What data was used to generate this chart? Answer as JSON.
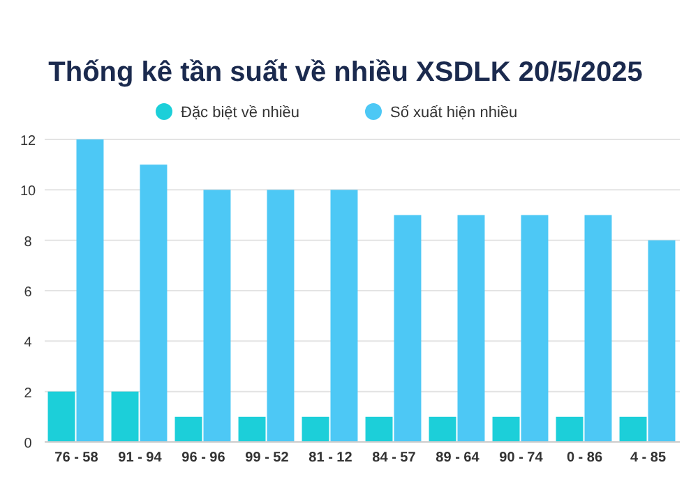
{
  "chart_data": {
    "type": "bar",
    "title": "Thống kê tần suất về nhiều XSDLK 20/5/2025",
    "categories": [
      "76 - 58",
      "91 - 94",
      "96 - 96",
      "99 - 52",
      "81 - 12",
      "84 - 57",
      "89 - 64",
      "90 - 74",
      "0 - 86",
      "4 - 85"
    ],
    "series": [
      {
        "name": "Đặc biệt về nhiều",
        "color": "#1ccfd9",
        "values": [
          2,
          2,
          1,
          1,
          1,
          1,
          1,
          1,
          1,
          1
        ]
      },
      {
        "name": "Số xuất hiện nhiều",
        "color": "#4dc8f5",
        "values": [
          12,
          11,
          10,
          10,
          10,
          9,
          9,
          9,
          9,
          8
        ]
      }
    ],
    "ylim": [
      0,
      12
    ],
    "yticks": [
      0,
      2,
      4,
      6,
      8,
      10,
      12
    ],
    "grid": "y",
    "legend": "top"
  }
}
